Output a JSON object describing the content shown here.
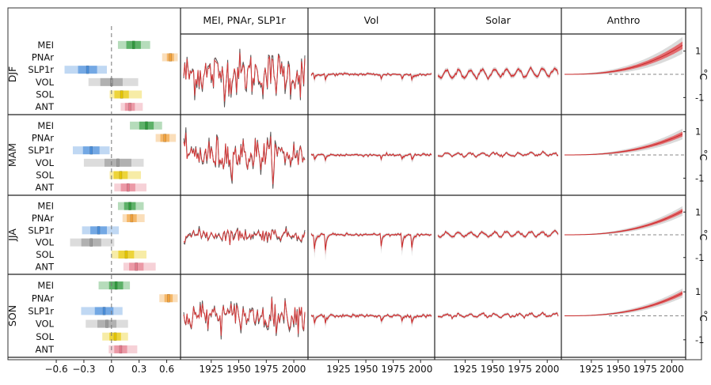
{
  "chart_data": {
    "type": "line",
    "seasons": [
      "DJF",
      "MAM",
      "JJA",
      "SON"
    ],
    "unit_label": "°C",
    "right_axis_ticks": [
      1,
      -1
    ],
    "column_titles": [
      "MEI, PNAr, SLP1r",
      "Vol",
      "Solar",
      "Anthro"
    ],
    "x_years_ticks": [
      "1925",
      "1950",
      "1975",
      "2000"
    ],
    "x_range": [
      1900,
      2010
    ],
    "coef_axis_ticks": [
      "−0.6",
      "−0.3",
      "0",
      "0.3",
      "0.6"
    ],
    "coef_axis_values": [
      -0.6,
      -0.3,
      0,
      0.3,
      0.6
    ],
    "coef_xlim": [
      -0.85,
      0.75
    ],
    "predictors": [
      "MEI",
      "PNAr",
      "SLP1r",
      "VOL",
      "SOL",
      "ANT"
    ],
    "predictor_colors": {
      "MEI": "#2e9a3c",
      "PNAr": "#f2a13a",
      "SLP1r": "#4a8fdc",
      "VOL": "#9a9a9a",
      "SOL": "#e8c800",
      "ANT": "#e57b8c"
    },
    "coefficients": {
      "DJF": {
        "MEI": [
          0.07,
          0.24,
          0.42
        ],
        "PNAr": [
          0.55,
          0.64,
          0.72
        ],
        "SLP1r": [
          -0.51,
          -0.26,
          -0.05
        ],
        "VOL": [
          -0.25,
          0.0,
          0.29
        ],
        "SOL": [
          -0.02,
          0.11,
          0.33
        ],
        "ANT": [
          0.1,
          0.2,
          0.34
        ]
      },
      "MAM": {
        "MEI": [
          0.2,
          0.38,
          0.55
        ],
        "PNAr": [
          0.48,
          0.58,
          0.7
        ],
        "SLP1r": [
          -0.42,
          -0.22,
          -0.02
        ],
        "VOL": [
          -0.3,
          0.07,
          0.35
        ],
        "SOL": [
          -0.02,
          0.1,
          0.32
        ],
        "ANT": [
          0.03,
          0.18,
          0.38
        ]
      },
      "JJA": {
        "MEI": [
          0.07,
          0.2,
          0.35
        ],
        "PNAr": [
          0.12,
          0.22,
          0.36
        ],
        "SLP1r": [
          -0.32,
          -0.14,
          0.08
        ],
        "VOL": [
          -0.45,
          -0.22,
          0.03
        ],
        "SOL": [
          0.0,
          0.16,
          0.38
        ],
        "ANT": [
          0.13,
          0.27,
          0.48
        ]
      },
      "SON": {
        "MEI": [
          -0.14,
          0.05,
          0.2
        ],
        "PNAr": [
          0.52,
          0.62,
          0.72
        ],
        "SLP1r": [
          -0.33,
          -0.08,
          0.12
        ],
        "VOL": [
          -0.28,
          -0.05,
          0.18
        ],
        "SOL": [
          -0.1,
          0.04,
          0.18
        ],
        "ANT": [
          -0.03,
          0.1,
          0.28
        ]
      }
    },
    "timeseries_ylim": [
      -1.6,
      1.6
    ],
    "timeseries_style": {
      "MEI, PNAr, SLP1r": {
        "amplitude": {
          "DJF": 1.2,
          "MAM": 0.95,
          "JJA": 0.35,
          "SON": 0.75
        },
        "kind": "noise"
      },
      "Vol": {
        "events": [
          1902.5,
          1912.5,
          1963.2,
          1982.3,
          1991.5
        ],
        "depth": {
          "DJF": 0.35,
          "MAM": 0.3,
          "JJA": 0.9,
          "SON": 0.45
        }
      },
      "Solar": {
        "amplitude": {
          "DJF": 0.35,
          "MAM": 0.12,
          "JJA": 0.2,
          "SON": 0.12
        },
        "period": 11
      },
      "Anthro": {
        "final": {
          "DJF": 1.25,
          "MAM": 0.9,
          "JJA": 1.05,
          "SON": 0.95
        },
        "spread": {
          "DJF": 0.35,
          "MAM": 0.22,
          "JJA": 0.2,
          "SON": 0.18
        }
      }
    },
    "legend": "none",
    "grid": false
  }
}
